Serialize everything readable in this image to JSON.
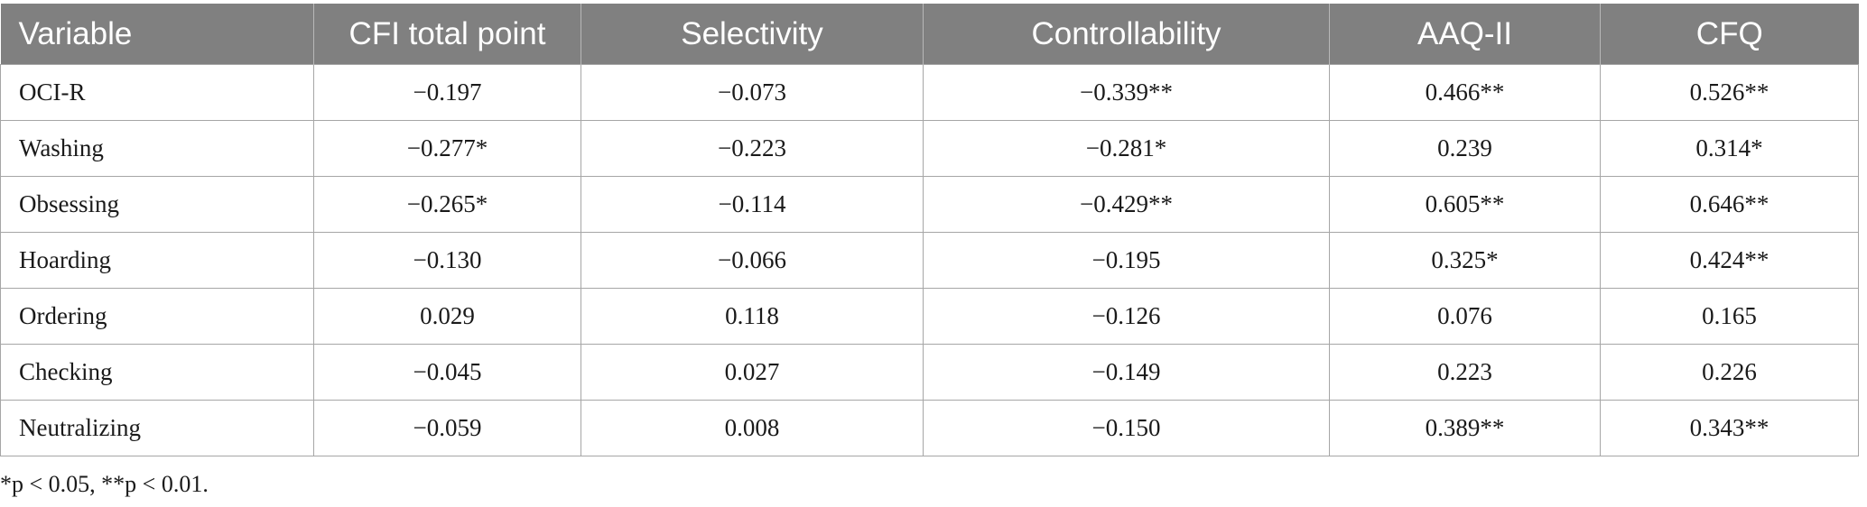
{
  "table": {
    "headers": [
      "Variable",
      "CFI total point",
      "Selectivity",
      "Controllability",
      "AAQ-II",
      "CFQ"
    ],
    "rows": [
      [
        "OCI-R",
        "−0.197",
        "−0.073",
        "−0.339**",
        "0.466**",
        "0.526**"
      ],
      [
        "Washing",
        "−0.277*",
        "−0.223",
        "−0.281*",
        "0.239",
        "0.314*"
      ],
      [
        "Obsessing",
        "−0.265*",
        "−0.114",
        "−0.429**",
        "0.605**",
        "0.646**"
      ],
      [
        "Hoarding",
        "−0.130",
        "−0.066",
        "−0.195",
        "0.325*",
        "0.424**"
      ],
      [
        "Ordering",
        "0.029",
        "0.118",
        "−0.126",
        "0.076",
        "0.165"
      ],
      [
        "Checking",
        "−0.045",
        "0.027",
        "−0.149",
        "0.223",
        "0.226"
      ],
      [
        "Neutralizing",
        "−0.059",
        "0.008",
        "−0.150",
        "0.389**",
        "0.343**"
      ]
    ]
  },
  "footnote": "*p < 0.05, **p < 0.01."
}
